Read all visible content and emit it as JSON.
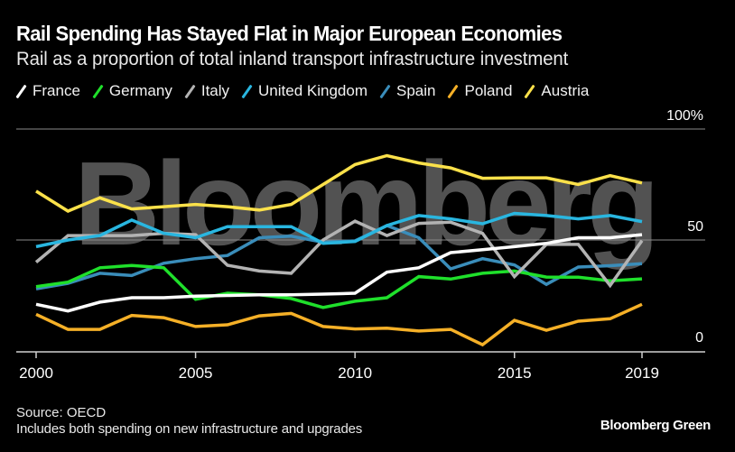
{
  "header": {
    "title": "Rail Spending Has Stayed Flat in Major European Economies",
    "subtitle": "Rail as a proportion of total inland transport infrastructure investment"
  },
  "watermark": "Bloomberg",
  "footer": {
    "source": "Source: OECD",
    "note": "Includes both spending on new infrastructure and upgrades",
    "brand": "Bloomberg Green"
  },
  "chart_data": {
    "type": "line",
    "title": "Rail Spending Has Stayed Flat in Major European Economies",
    "subtitle": "Rail as a proportion of total inland transport infrastructure investment",
    "xlabel": "",
    "ylabel": "",
    "x": [
      2000,
      2001,
      2002,
      2003,
      2004,
      2005,
      2006,
      2007,
      2008,
      2009,
      2010,
      2011,
      2012,
      2013,
      2014,
      2015,
      2016,
      2017,
      2018,
      2019
    ],
    "xticks": [
      "2000",
      "2005",
      "2010",
      "2015",
      "2019"
    ],
    "xtick_values": [
      2000,
      2005,
      2010,
      2015,
      2019
    ],
    "yticks": [
      "0",
      "50",
      "100%"
    ],
    "ytick_values": [
      0,
      50,
      100
    ],
    "ylim": [
      0,
      100
    ],
    "xlim": [
      2000,
      2019
    ],
    "grid": true,
    "legend_position": "top-left",
    "series": [
      {
        "name": "France",
        "color": "#ffffff",
        "values": [
          21,
          18,
          22,
          24,
          24,
          24.7,
          25,
          25.3,
          25.3,
          25.6,
          26,
          35.5,
          37.5,
          44.3,
          45.6,
          47,
          48.5,
          51,
          51,
          52.4
        ]
      },
      {
        "name": "Germany",
        "color": "#1fe02b",
        "values": [
          29,
          31,
          37.5,
          38.5,
          37.5,
          23.3,
          26,
          25.3,
          23.6,
          19.6,
          22.4,
          24,
          33.5,
          32.4,
          35,
          36,
          33.3,
          33.2,
          31.6,
          32.5
        ]
      },
      {
        "name": "Italy",
        "color": "#b3b3b3",
        "values": [
          40,
          52,
          52,
          52,
          53,
          52.4,
          38.6,
          36,
          35,
          50,
          58.5,
          52,
          57.5,
          58,
          53,
          33.5,
          48,
          48,
          29.5,
          49.7
        ]
      },
      {
        "name": "United Kingdom",
        "color": "#29b6e0",
        "values": [
          47,
          50,
          52,
          59,
          53,
          51,
          56,
          56,
          56,
          48.5,
          49.3,
          56.5,
          61,
          59.5,
          57.3,
          62,
          61,
          59.5,
          61,
          58.3
        ]
      },
      {
        "name": "Spain",
        "color": "#3a8dba",
        "values": [
          28,
          30.5,
          35,
          34,
          39.5,
          41.6,
          43,
          51,
          51.7,
          49,
          49.6,
          56.5,
          51,
          37,
          41.6,
          38.8,
          30,
          37.8,
          38.4,
          39.3
        ]
      },
      {
        "name": "Poland",
        "color": "#f5b027",
        "values": [
          16.5,
          9.7,
          9.7,
          16,
          15,
          11,
          11.8,
          15.8,
          16.9,
          11,
          9.9,
          10.3,
          9,
          9.7,
          2.8,
          13.8,
          9.3,
          13.4,
          14.5,
          21
        ]
      },
      {
        "name": "Austria",
        "color": "#fbe14a",
        "values": [
          72,
          63,
          69,
          64,
          65,
          66,
          65,
          63.5,
          66,
          75,
          84,
          88,
          84.7,
          82.5,
          77.8,
          78,
          78,
          75,
          79,
          75.7
        ]
      }
    ]
  }
}
